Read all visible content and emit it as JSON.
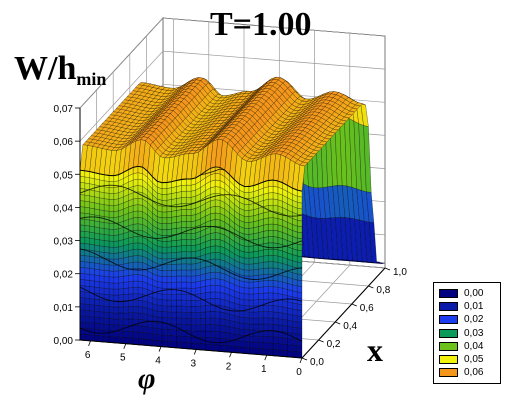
{
  "title": "T=1.00",
  "chart_data": {
    "type": "surface3d",
    "title": "T=1.00",
    "zlabel": "W/h",
    "zlabel_sub": "min",
    "xlabel": "x",
    "ylabel": "φ",
    "z_ticks": [
      "0,00",
      "0,01",
      "0,02",
      "0,03",
      "0,04",
      "0,05",
      "0,06",
      "0,07"
    ],
    "x_ticks": [
      "0,0",
      "0,2",
      "0,4",
      "0,6",
      "0,8",
      "1,0"
    ],
    "phi_ticks": [
      "0",
      "1",
      "2",
      "3",
      "4",
      "5",
      "6"
    ],
    "xlim": [
      0,
      1
    ],
    "philim": [
      0,
      6.3
    ],
    "zlim": [
      0,
      0.07
    ],
    "surface_profile_phi": [
      {
        "phi": 0.0,
        "z": 0.057
      },
      {
        "phi": 0.8,
        "z": 0.06
      },
      {
        "phi": 1.6,
        "z": 0.057
      },
      {
        "phi": 2.4,
        "z": 0.063
      },
      {
        "phi": 3.2,
        "z": 0.058
      },
      {
        "phi": 4.0,
        "z": 0.056
      },
      {
        "phi": 4.6,
        "z": 0.061
      },
      {
        "phi": 5.4,
        "z": 0.057
      },
      {
        "phi": 6.3,
        "z": 0.058
      }
    ],
    "surface_profile_x": [
      {
        "x": 0.0,
        "f": 1.0
      },
      {
        "x": 0.72,
        "f": 1.0
      },
      {
        "x": 0.78,
        "f": 0.97
      },
      {
        "x": 0.84,
        "f": 0.45
      },
      {
        "x": 0.9,
        "f": 0.05
      },
      {
        "x": 1.0,
        "f": 0.0
      }
    ],
    "legend": [
      {
        "label": "0,00",
        "color": "#000080"
      },
      {
        "label": "0,01",
        "color": "#0a1aa8"
      },
      {
        "label": "0,02",
        "color": "#1c3cf0"
      },
      {
        "label": "0,03",
        "color": "#0a9a5a"
      },
      {
        "label": "0,04",
        "color": "#6cc21a"
      },
      {
        "label": "0,05",
        "color": "#f2f20a"
      },
      {
        "label": "0,06",
        "color": "#f4961c"
      }
    ],
    "grid": true,
    "legend_position": "bottom-right"
  }
}
